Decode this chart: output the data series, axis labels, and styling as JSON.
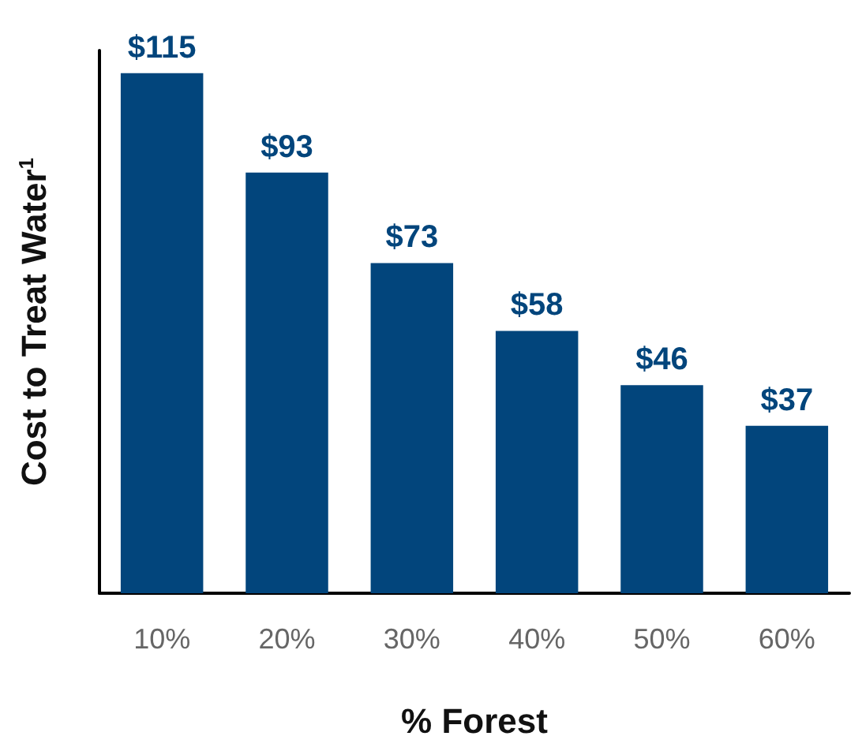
{
  "chart_data": {
    "type": "bar",
    "xlabel": "% Forest",
    "ylabel": "Cost to Treat Water$^{1}$",
    "categories": [
      "10%",
      "20%",
      "30%",
      "40%",
      "50%",
      "60%"
    ],
    "values": [
      115,
      93,
      73,
      58,
      46,
      37
    ],
    "value_labels": [
      "$115",
      "$93",
      "$73",
      "$58",
      "$46",
      "$37"
    ],
    "color": "#02457c"
  }
}
